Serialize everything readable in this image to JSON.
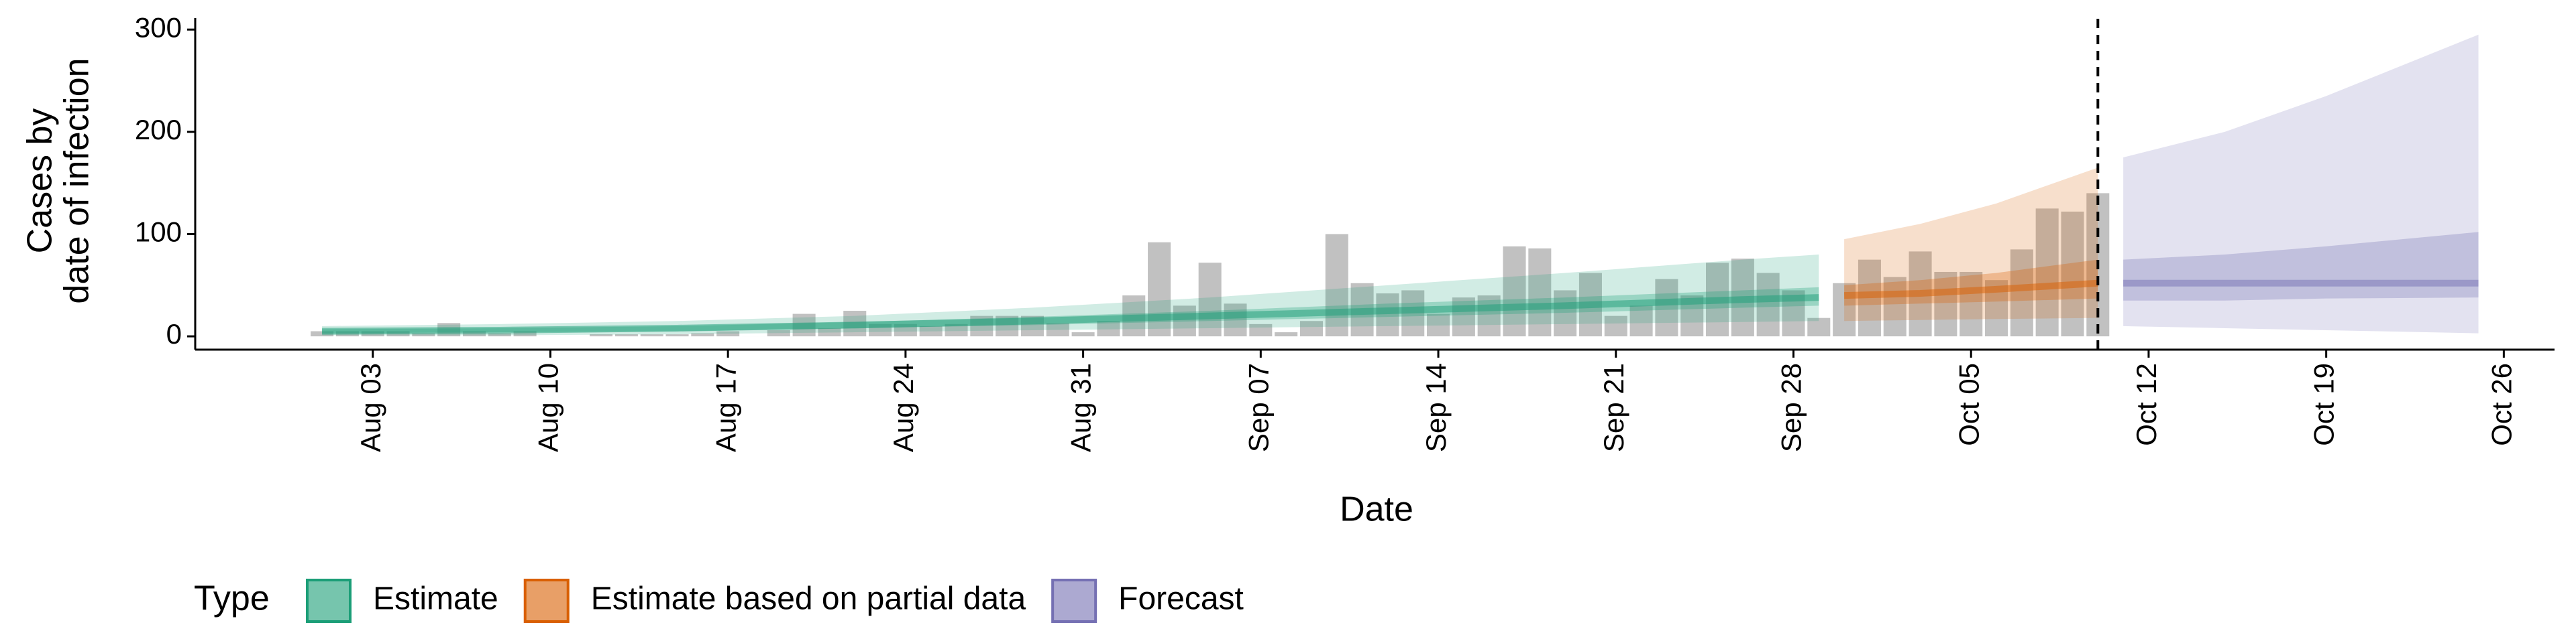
{
  "chart_data": {
    "type": "bar-ribbon",
    "ylabel": [
      "Cases by",
      "date of infection"
    ],
    "xlabel": "Date",
    "legend_title": "Type",
    "xlim": [
      "07-27",
      "10-28"
    ],
    "ylim": [
      -13,
      306
    ],
    "yticks": [
      0,
      100,
      200,
      300
    ],
    "xticks": [
      {
        "value": "08-03",
        "label": "Aug 03"
      },
      {
        "value": "08-10",
        "label": "Aug 10"
      },
      {
        "value": "08-17",
        "label": "Aug 17"
      },
      {
        "value": "08-24",
        "label": "Aug 24"
      },
      {
        "value": "08-31",
        "label": "Aug 31"
      },
      {
        "value": "09-07",
        "label": "Sep 07"
      },
      {
        "value": "09-14",
        "label": "Sep 14"
      },
      {
        "value": "09-21",
        "label": "Sep 21"
      },
      {
        "value": "09-28",
        "label": "Sep 28"
      },
      {
        "value": "10-05",
        "label": "Oct 05"
      },
      {
        "value": "10-12",
        "label": "Oct 12"
      },
      {
        "value": "10-19",
        "label": "Oct 19"
      },
      {
        "value": "10-26",
        "label": "Oct 26"
      }
    ],
    "vline": "10-10",
    "bars": {
      "color": "#a0a0a0",
      "x": [
        "08-01",
        "08-02",
        "08-03",
        "08-04",
        "08-05",
        "08-06",
        "08-07",
        "08-08",
        "08-09",
        "08-10",
        "08-11",
        "08-12",
        "08-13",
        "08-14",
        "08-15",
        "08-16",
        "08-17",
        "08-18",
        "08-19",
        "08-20",
        "08-21",
        "08-22",
        "08-23",
        "08-24",
        "08-25",
        "08-26",
        "08-27",
        "08-28",
        "08-29",
        "08-30",
        "08-31",
        "09-01",
        "09-02",
        "09-03",
        "09-04",
        "09-05",
        "09-06",
        "09-07",
        "09-08",
        "09-09",
        "09-10",
        "09-11",
        "09-12",
        "09-13",
        "09-14",
        "09-15",
        "09-16",
        "09-17",
        "09-18",
        "09-19",
        "09-20",
        "09-21",
        "09-22",
        "09-23",
        "09-24",
        "09-25",
        "09-26",
        "09-27",
        "09-28",
        "09-29",
        "09-30",
        "10-01",
        "10-02",
        "10-03",
        "10-04",
        "10-05",
        "10-06",
        "10-07",
        "10-08",
        "10-09",
        "10-10"
      ],
      "values": [
        5,
        5,
        5,
        5,
        3,
        13,
        5,
        3,
        5,
        0,
        0,
        2,
        2,
        2,
        2,
        3,
        5,
        0,
        6,
        22,
        8,
        25,
        12,
        12,
        10,
        12,
        20,
        20,
        20,
        13,
        4,
        15,
        40,
        92,
        30,
        72,
        32,
        12,
        4,
        15,
        100,
        52,
        42,
        45,
        22,
        38,
        40,
        88,
        86,
        45,
        62,
        20,
        30,
        56,
        40,
        72,
        76,
        62,
        45,
        18,
        52,
        75,
        58,
        83,
        63,
        63,
        55,
        85,
        125,
        122,
        140
      ]
    },
    "series": [
      {
        "name": "Estimate",
        "color": "#1b9e77",
        "x": [
          "08-01",
          "08-08",
          "08-15",
          "08-22",
          "08-29",
          "09-05",
          "09-12",
          "09-19",
          "09-26",
          "09-29"
        ],
        "median": [
          5,
          6,
          8,
          11,
          15,
          20,
          25,
          30,
          36,
          38
        ],
        "lower_50": [
          3,
          4,
          5,
          8,
          11,
          15,
          19,
          23,
          28,
          30
        ],
        "upper_50": [
          7,
          8,
          10,
          14,
          19,
          25,
          32,
          38,
          45,
          48
        ],
        "lower_90": [
          1,
          1,
          2,
          4,
          6,
          8,
          10,
          12,
          14,
          15
        ],
        "upper_90": [
          10,
          12,
          15,
          20,
          28,
          38,
          50,
          62,
          75,
          80
        ]
      },
      {
        "name": "Estimate based on partial data",
        "color": "#d95f02",
        "x": [
          "09-30",
          "10-03",
          "10-06",
          "10-10"
        ],
        "median": [
          40,
          42,
          46,
          52
        ],
        "lower_50": [
          30,
          32,
          34,
          37
        ],
        "upper_50": [
          50,
          55,
          62,
          75
        ],
        "lower_90": [
          15,
          16,
          17,
          18
        ],
        "upper_90": [
          95,
          110,
          130,
          165
        ]
      },
      {
        "name": "Forecast",
        "color": "#7570b3",
        "x": [
          "10-11",
          "10-15",
          "10-19",
          "10-25"
        ],
        "median": [
          52,
          52,
          52,
          52
        ],
        "lower_50": [
          35,
          35,
          37,
          38
        ],
        "upper_50": [
          75,
          80,
          88,
          102
        ],
        "lower_90": [
          10,
          8,
          6,
          3
        ],
        "upper_90": [
          175,
          200,
          235,
          295
        ]
      }
    ]
  }
}
